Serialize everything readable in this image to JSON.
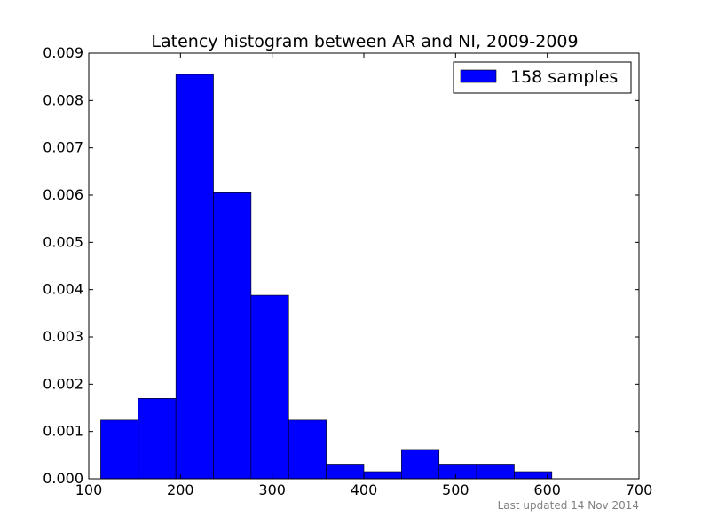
{
  "chart_data": {
    "type": "bar",
    "title": "Latency histogram between AR and NI, 2009-2009",
    "xlabel": "",
    "ylabel": "",
    "xlim": [
      100,
      700
    ],
    "ylim": [
      0,
      0.009
    ],
    "x_ticks": [
      "100",
      "200",
      "300",
      "400",
      "500",
      "600",
      "700"
    ],
    "y_ticks": [
      "0.000",
      "0.001",
      "0.002",
      "0.003",
      "0.004",
      "0.005",
      "0.006",
      "0.007",
      "0.008",
      "0.009"
    ],
    "bins": [
      {
        "start": 113,
        "end": 154,
        "value": 0.00124
      },
      {
        "start": 154,
        "end": 195,
        "value": 0.0017
      },
      {
        "start": 195,
        "end": 236,
        "value": 0.00855
      },
      {
        "start": 236,
        "end": 277,
        "value": 0.00605
      },
      {
        "start": 277,
        "end": 318,
        "value": 0.00388
      },
      {
        "start": 318,
        "end": 359,
        "value": 0.00124
      },
      {
        "start": 359,
        "end": 400,
        "value": 0.00031
      },
      {
        "start": 400,
        "end": 441,
        "value": 0.00015
      },
      {
        "start": 441,
        "end": 482,
        "value": 0.00062
      },
      {
        "start": 482,
        "end": 523,
        "value": 0.00031
      },
      {
        "start": 523,
        "end": 564,
        "value": 0.00031
      },
      {
        "start": 564,
        "end": 605,
        "value": 0.00015
      }
    ],
    "series": [
      {
        "name": "158 samples",
        "color": "#0000ff"
      }
    ],
    "legend_position": "top-right",
    "grid": false
  },
  "footer_text": "Last updated 14 Nov 2014"
}
